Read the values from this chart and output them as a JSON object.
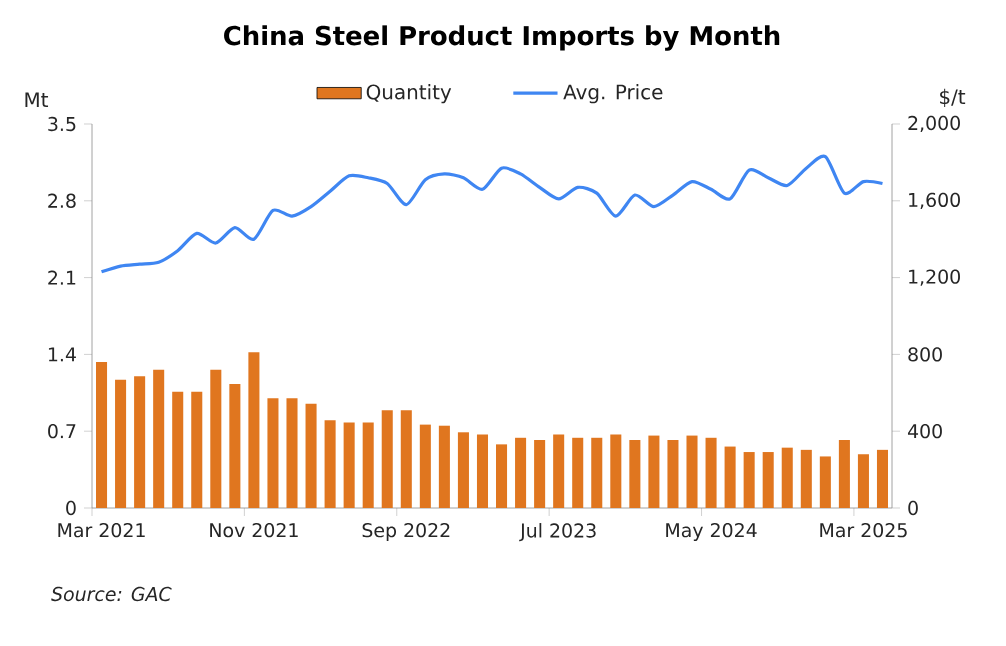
{
  "chart_data": {
    "type": "bar",
    "title": "China Steel Product Imports by Month",
    "categories": [
      "Mar 2021",
      null,
      null,
      null,
      null,
      null,
      null,
      null,
      "Nov 2021",
      null,
      null,
      null,
      null,
      null,
      null,
      null,
      "Sep 2022",
      null,
      null,
      null,
      null,
      null,
      null,
      null,
      "Jul 2023",
      null,
      null,
      null,
      null,
      null,
      null,
      null,
      "May 2024",
      null,
      null,
      null,
      null,
      null,
      null,
      null,
      "Mar 2025",
      null
    ],
    "series": [
      {
        "name": "Quantity",
        "color": "#e0761f",
        "values": [
          1.33,
          1.17,
          1.2,
          1.26,
          1.06,
          1.06,
          1.26,
          1.13,
          1.42,
          1.0,
          1.0,
          0.95,
          0.8,
          0.78,
          0.78,
          0.89,
          0.89,
          0.76,
          0.75,
          0.69,
          0.67,
          0.58,
          0.64,
          0.62,
          0.67,
          0.64,
          0.64,
          0.67,
          0.62,
          0.66,
          0.62,
          0.66,
          0.64,
          0.56,
          0.51,
          0.51,
          0.55,
          0.53,
          0.47,
          0.62,
          0.49,
          0.53
        ]
      },
      {
        "name": "Avg. Price",
        "type": "line",
        "axis": "y2",
        "color": "#3f86f2",
        "values": [
          1230,
          1260,
          1270,
          1280,
          1340,
          1430,
          1380,
          1460,
          1400,
          1550,
          1520,
          1570,
          1650,
          1730,
          1720,
          1690,
          1580,
          1710,
          1740,
          1720,
          1660,
          1770,
          1740,
          1670,
          1610,
          1670,
          1640,
          1520,
          1630,
          1570,
          1630,
          1700,
          1660,
          1610,
          1760,
          1720,
          1680,
          1770,
          1830,
          1640,
          1700,
          1690
        ]
      }
    ],
    "ylabel": "Mt",
    "y2label": "$/t",
    "ylim": [
      0,
      3.5
    ],
    "yticks": [
      0,
      0.7,
      1.4,
      2.1,
      2.8,
      3.5
    ],
    "y2lim": [
      0,
      2000
    ],
    "y2ticks": [
      0,
      {
        "value": 400,
        "label": "400"
      },
      {
        "value": 800,
        "label": "800"
      },
      {
        "value": 1200,
        "label": "1,200"
      },
      {
        "value": 1600,
        "label": "1,600"
      },
      {
        "value": 2000,
        "label": "2,000"
      }
    ],
    "legend": "top",
    "annotations": [
      "Source: GAC"
    ]
  }
}
